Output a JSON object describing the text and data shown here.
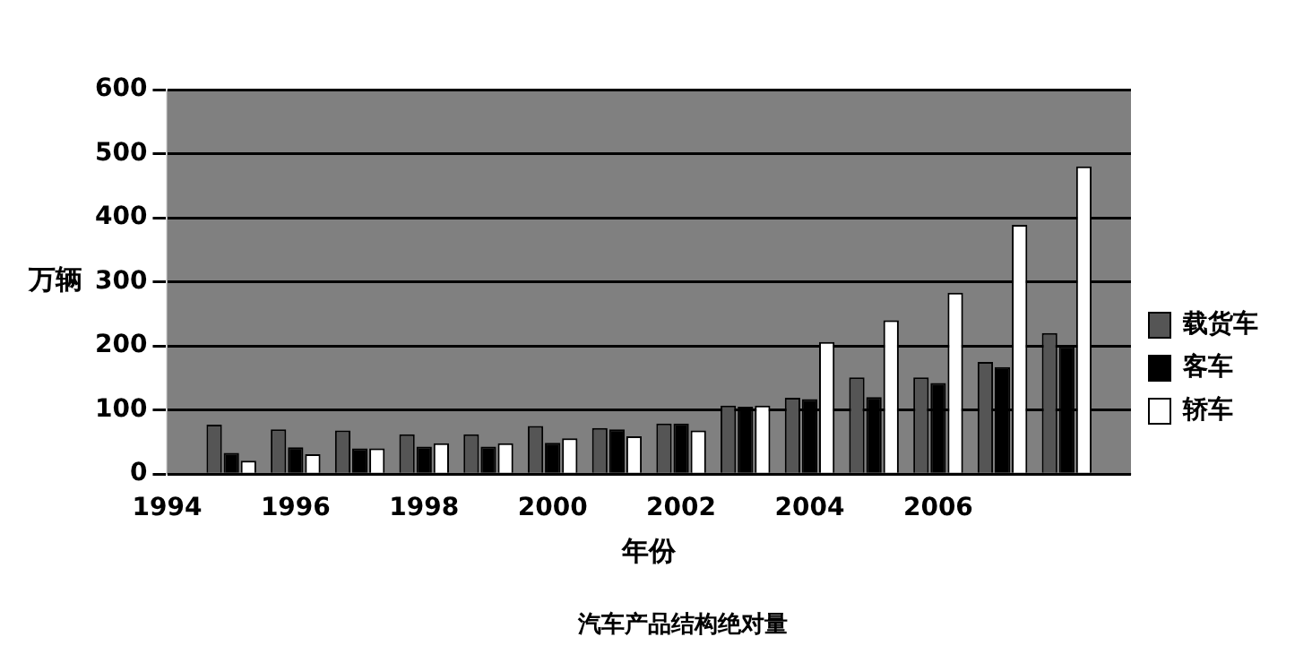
{
  "chart_data": {
    "type": "bar",
    "title": "汽车产品结构绝对量",
    "xlabel": "年份",
    "ylabel": "万辆",
    "x": [
      1995,
      1996,
      1997,
      1998,
      1999,
      2000,
      2001,
      2002,
      2003,
      2004,
      2005,
      2006,
      2007,
      2008
    ],
    "series": [
      {
        "name": "载货车",
        "color": "#555555",
        "values": [
          77,
          70,
          68,
          62,
          62,
          75,
          72,
          79,
          107,
          119,
          151,
          151,
          175,
          220
        ]
      },
      {
        "name": "客车",
        "color": "#000000",
        "values": [
          33,
          42,
          40,
          43,
          43,
          49,
          70,
          79,
          105,
          117,
          120,
          142,
          167,
          200
        ]
      },
      {
        "name": "轿车",
        "color": "#ffffff",
        "values": [
          21,
          31,
          40,
          48,
          48,
          56,
          59,
          68,
          107,
          206,
          240,
          283,
          389,
          480
        ]
      }
    ],
    "xlim": [
      1994,
      2009
    ],
    "xticks": [
      1994,
      1996,
      1998,
      2000,
      2002,
      2004,
      2006
    ],
    "ylim": [
      0,
      600
    ],
    "yticks": [
      0,
      100,
      200,
      300,
      400,
      500,
      600
    ],
    "grid": "y",
    "legend": "right"
  }
}
